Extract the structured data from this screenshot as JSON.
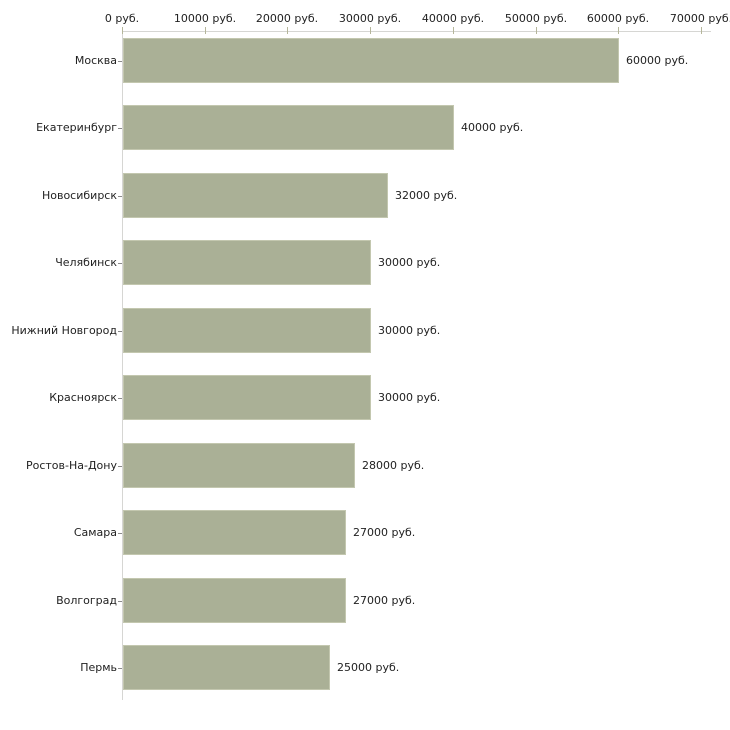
{
  "chart_data": {
    "type": "bar",
    "orientation": "horizontal",
    "title": "",
    "xlabel": "",
    "ylabel": "",
    "unit": "руб.",
    "xlim": [
      0,
      70000
    ],
    "grid": false,
    "legend": false,
    "x_ticks": [
      {
        "value": 0,
        "label": "0 руб."
      },
      {
        "value": 10000,
        "label": "10000 руб."
      },
      {
        "value": 20000,
        "label": "20000 руб."
      },
      {
        "value": 30000,
        "label": "30000 руб."
      },
      {
        "value": 40000,
        "label": "40000 руб."
      },
      {
        "value": 50000,
        "label": "50000 руб."
      },
      {
        "value": 60000,
        "label": "60000 руб."
      },
      {
        "value": 70000,
        "label": "70000 руб."
      }
    ],
    "bars": [
      {
        "category": "Москва",
        "value": 60000,
        "label": "60000 руб."
      },
      {
        "category": "Екатеринбург",
        "value": 40000,
        "label": "40000 руб."
      },
      {
        "category": "Новосибирск",
        "value": 32000,
        "label": "32000 руб."
      },
      {
        "category": "Челябинск",
        "value": 30000,
        "label": "30000 руб."
      },
      {
        "category": "Нижний Новгород",
        "value": 30000,
        "label": "30000 руб."
      },
      {
        "category": "Красноярск",
        "value": 30000,
        "label": "30000 руб."
      },
      {
        "category": "Ростов-На-Дону",
        "value": 28000,
        "label": "28000 руб."
      },
      {
        "category": "Самара",
        "value": 27000,
        "label": "27000 руб."
      },
      {
        "category": "Волгоград",
        "value": 27000,
        "label": "27000 руб."
      },
      {
        "category": "Пермь",
        "value": 25000,
        "label": "25000 руб."
      }
    ]
  },
  "colors": {
    "background": "#ffffff",
    "bar_fill": "#aab096",
    "bar_border": "#c3c7af",
    "axis_line": "#d6d6d3",
    "tick_mark": "#b5b69a",
    "category_tick": "#8a8a8a",
    "text": "#222222"
  }
}
